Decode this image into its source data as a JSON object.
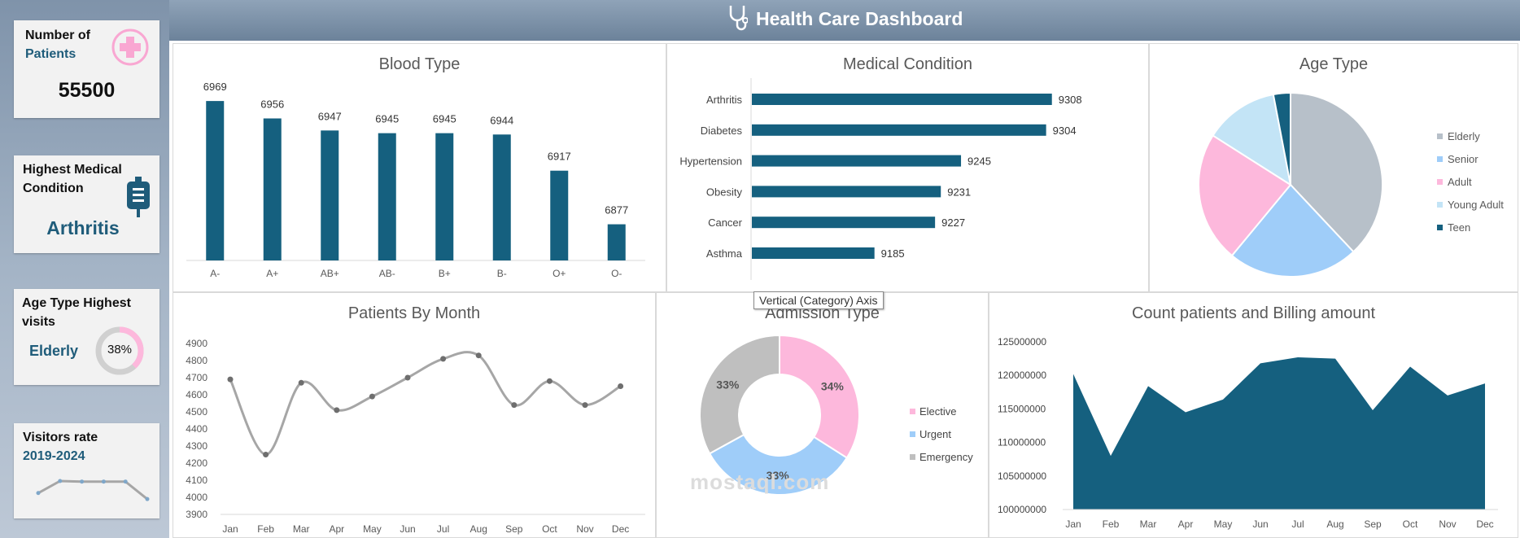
{
  "header": {
    "title": "Health Care Dashboard",
    "icon": "stethoscope-icon"
  },
  "kpis": {
    "patients": {
      "label_line1": "Number of",
      "label_line2": "Patients",
      "value": "55500",
      "icon": "plus-cross-icon"
    },
    "condition": {
      "label_line1": "Highest Medical",
      "label_line2": "Condition",
      "value": "Arthritis",
      "icon": "iv-bag-icon"
    },
    "age": {
      "label_line1": "Age Type Highest",
      "label_line2": "visits",
      "value": "Elderly",
      "percent_label": "38%",
      "percent": 38
    },
    "visitors": {
      "label_line1": "Visitors rate",
      "label_line2": "2019-2024",
      "values": [
        3,
        5,
        4.9,
        4.9,
        4.9,
        2
      ]
    }
  },
  "tooltip": "Vertical (Category) Axis",
  "watermark": "mostaql.com",
  "colors": {
    "navy": "#15607f",
    "pink": "#fdb8dc",
    "lightblue": "#9fcdf9",
    "gray": "#b7c0c9",
    "paleblue": "#c3e4f6",
    "line": "#a6a6a6"
  },
  "chart_data": [
    {
      "id": "blood",
      "type": "bar",
      "title": "Blood Type",
      "categories": [
        "A-",
        "A+",
        "AB+",
        "AB-",
        "B+",
        "B-",
        "O+",
        "O-"
      ],
      "values": [
        6969,
        6956,
        6947,
        6945,
        6945,
        6944,
        6917,
        6877
      ],
      "ylim": [
        6850,
        6980
      ]
    },
    {
      "id": "condition",
      "type": "bar",
      "orientation": "horizontal",
      "title": "Medical Condition",
      "categories": [
        "Arthritis",
        "Diabetes",
        "Hypertension",
        "Obesity",
        "Cancer",
        "Asthma"
      ],
      "values": [
        9308,
        9304,
        9245,
        9231,
        9227,
        9185
      ],
      "xlim": [
        9100,
        9320
      ]
    },
    {
      "id": "age",
      "type": "pie",
      "title": "Age Type",
      "labels": [
        "Elderly",
        "Senior",
        "Adult",
        "Young Adult",
        "Teen"
      ],
      "values": [
        38,
        23,
        23,
        13,
        3
      ],
      "legend": "right"
    },
    {
      "id": "month",
      "type": "line",
      "title": "Patients By Month",
      "categories": [
        "Jan",
        "Feb",
        "Mar",
        "Apr",
        "May",
        "Jun",
        "Jul",
        "Aug",
        "Sep",
        "Oct",
        "Nov",
        "Dec"
      ],
      "values": [
        4690,
        4250,
        4670,
        4510,
        4590,
        4700,
        4810,
        4830,
        4540,
        4680,
        4540,
        4650
      ],
      "yticks": [
        "4900",
        "4800",
        "4700",
        "4600",
        "4500",
        "4400",
        "4300",
        "4200",
        "4100",
        "4000",
        "3900"
      ],
      "ylim": [
        3900,
        4900
      ]
    },
    {
      "id": "admission",
      "type": "pie",
      "donut": true,
      "title": "Admission Type",
      "labels": [
        "Elective",
        "Urgent",
        "Emergency"
      ],
      "values": [
        34,
        33,
        33
      ],
      "value_labels": [
        "34%",
        "33%",
        "33%"
      ],
      "legend": "right"
    },
    {
      "id": "billing",
      "type": "area",
      "title": "Count patients and Billing amount",
      "categories": [
        "Jan",
        "Feb",
        "Mar",
        "Apr",
        "May",
        "Jun",
        "Jul",
        "Aug",
        "Sep",
        "Oct",
        "Nov",
        "Dec"
      ],
      "values": [
        120200000,
        108000000,
        118400000,
        114500000,
        116400000,
        121800000,
        122700000,
        122500000,
        114800000,
        121300000,
        117000000,
        118800000
      ],
      "yticks": [
        "125000000",
        "120000000",
        "115000000",
        "110000000",
        "105000000",
        "100000000"
      ],
      "ylim": [
        100000000,
        125000000
      ]
    }
  ]
}
